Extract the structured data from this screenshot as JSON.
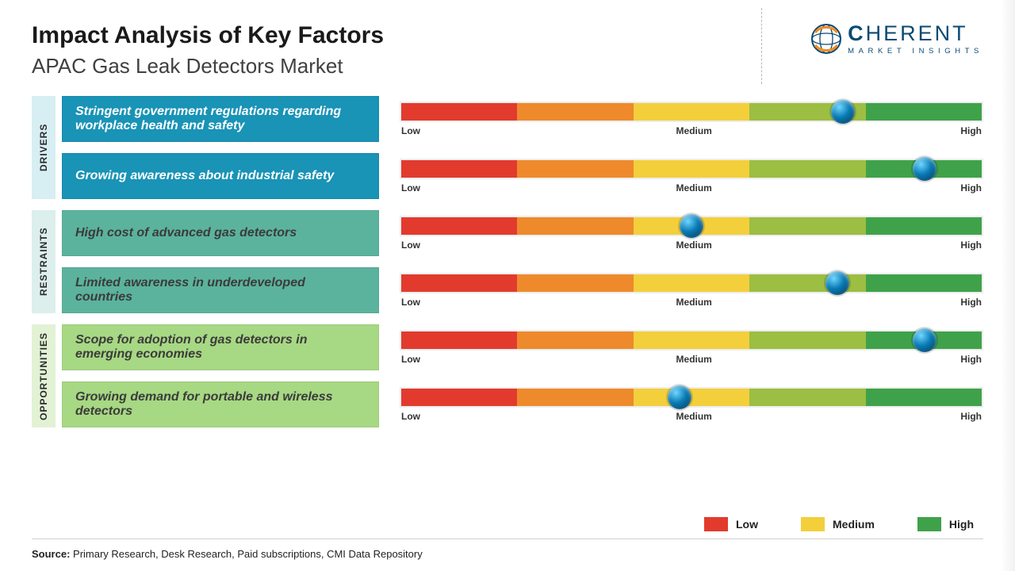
{
  "title": "Impact Analysis of Key Factors",
  "subtitle": "APAC Gas Leak Detectors Market",
  "logo": {
    "brand_prefix": "C",
    "brand_rest": "HERENT",
    "sub": "MARKET INSIGHTS",
    "globe_outer": "#0b4a73",
    "globe_inner": "#f28c1f"
  },
  "scale_labels": {
    "low": "Low",
    "medium": "Medium",
    "high": "High"
  },
  "segment_colors": [
    "#e23b2e",
    "#ee8a2b",
    "#f3cf3b",
    "#9cbe42",
    "#3fa24a"
  ],
  "knob_color_stop1": "#6fd7ff",
  "knob_color_stop2": "#0a7bb5",
  "knob_color_stop3": "#023451",
  "background_color": "#ffffff",
  "row_bg": "#ededed",
  "groups": [
    {
      "key": "drivers",
      "tab_label": "DRIVERS",
      "tab_bg": "#d7eef2",
      "factor_bg": "#1993b6",
      "factor_text_color": "#ffffff",
      "items": [
        {
          "label": "Stringent government regulations regarding workplace health and safety",
          "knob_pct": 76
        },
        {
          "label": "Growing awareness about industrial safety",
          "knob_pct": 90
        }
      ]
    },
    {
      "key": "restraints",
      "tab_label": "RESTRAINTS",
      "tab_bg": "#dcefec",
      "factor_bg": "#5bb39d",
      "factor_text_color": "#3b3b3b",
      "items": [
        {
          "label": "High cost of advanced gas detectors",
          "knob_pct": 50
        },
        {
          "label": "Limited awareness in underdeveloped countries",
          "knob_pct": 75
        }
      ]
    },
    {
      "key": "opportunities",
      "tab_label": "OPPORTUNITIES",
      "tab_bg": "#e2f2d4",
      "factor_bg": "#a7d883",
      "factor_text_color": "#3b3b3b",
      "items": [
        {
          "label": "Scope for adoption of gas detectors in emerging economies",
          "knob_pct": 90
        },
        {
          "label": "Growing demand for portable and wireless detectors",
          "knob_pct": 48
        }
      ]
    }
  ],
  "legend": {
    "low": {
      "label": "Low",
      "color": "#e23b2e"
    },
    "medium": {
      "label": "Medium",
      "color": "#f3cf3b"
    },
    "high": {
      "label": "High",
      "color": "#3fa24a"
    }
  },
  "source_prefix": "Source:",
  "source_text": " Primary Research, Desk Research, Paid subscriptions, CMI Data Repository"
}
